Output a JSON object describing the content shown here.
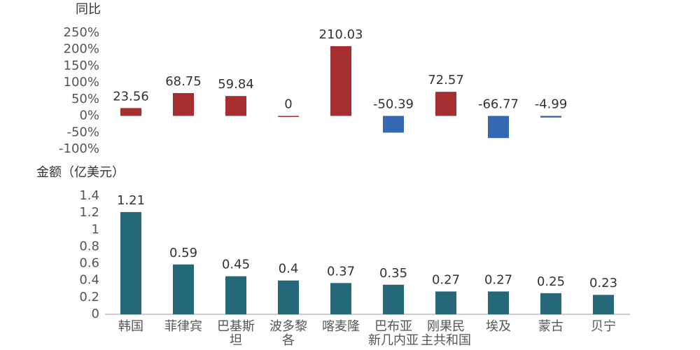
{
  "chart_data": [
    {
      "type": "bar",
      "y_label": "同比",
      "values": [
        23.56,
        68.75,
        59.84,
        0,
        210.03,
        -50.39,
        72.57,
        -66.77,
        -4.99,
        null
      ],
      "colors": [
        "#a52e2e",
        "#a52e2e",
        "#a52e2e",
        "#a52e2e",
        "#a52e2e",
        "#3468b0",
        "#a52e2e",
        "#3468b0",
        "#3468b0",
        null
      ],
      "ylim": [
        -100,
        250
      ],
      "yticks": [
        {
          "value": -100,
          "label": "-100%"
        },
        {
          "value": -50,
          "label": "-50%"
        },
        {
          "value": 0,
          "label": "0%"
        },
        {
          "value": 50,
          "label": "50%"
        },
        {
          "value": 100,
          "label": "100%"
        },
        {
          "value": 150,
          "label": "150%"
        },
        {
          "value": 200,
          "label": "200%"
        },
        {
          "value": 250,
          "label": "250%"
        }
      ]
    },
    {
      "type": "bar",
      "y_label": "金额（亿美元）",
      "categories": [
        "韩国",
        "菲律宾",
        "巴基斯坦",
        "波多黎各",
        "喀麦隆",
        "巴布亚新几内亚",
        "刚果民主共和国",
        "埃及",
        "蒙古",
        "贝宁"
      ],
      "values": [
        1.21,
        0.59,
        0.45,
        0.4,
        0.37,
        0.35,
        0.27,
        0.27,
        0.25,
        0.23
      ],
      "color": "#25687a",
      "ylim": [
        0,
        1.4
      ],
      "yticks": [
        0,
        0.2,
        0.4,
        0.6,
        0.8,
        1,
        1.2,
        1.4
      ]
    }
  ]
}
